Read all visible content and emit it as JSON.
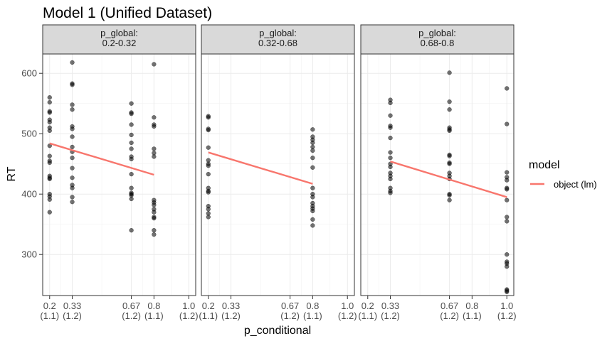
{
  "chart_data": {
    "type": "scatter",
    "title": "Model 1 (Unified Dataset)",
    "xlabel": "p_conditional",
    "ylabel": "RT",
    "xlim": [
      0.16,
      1.04
    ],
    "ylim": [
      232,
      632
    ],
    "y_ticks": [
      300,
      400,
      500,
      600
    ],
    "x_ticks": [
      {
        "value": 0.2,
        "label": [
          "0.2",
          "(1.1)"
        ]
      },
      {
        "value": 0.33,
        "label": [
          "0.33",
          "(1.2)"
        ]
      },
      {
        "value": 0.67,
        "label": [
          "0.67",
          "(1.2)"
        ]
      },
      {
        "value": 0.8,
        "label": [
          "0.8",
          "(1.1)"
        ]
      },
      {
        "value": 1.0,
        "label": [
          "1.0",
          "(1.2)"
        ]
      }
    ],
    "grid": true,
    "legend": {
      "title": "model",
      "position": "right",
      "entries": [
        {
          "name": "object (lm)",
          "color": "#F8766D"
        }
      ]
    },
    "point_color": "#000000",
    "line_color": "#F8766D",
    "panels": [
      {
        "strip": [
          "p_global:",
          "0.2-0.32"
        ],
        "fit": {
          "x": [
            0.2,
            0.8
          ],
          "y": [
            484,
            432
          ]
        },
        "points": [
          {
            "x": 0.2,
            "y": [
              560,
              552,
              537,
              535,
              523,
              519,
              510,
              505,
              480,
              463,
              455,
              452,
              430,
              427,
              425,
              400,
              396,
              391,
              370
            ]
          },
          {
            "x": 0.33,
            "y": [
              618,
              583,
              581,
              548,
              540,
              512,
              508,
              495,
              478,
              470,
              460,
              443,
              427,
              415,
              410,
              395,
              387
            ]
          },
          {
            "x": 0.67,
            "y": [
              550,
              535,
              533,
              515,
              498,
              485,
              475,
              462,
              458,
              433,
              410,
              402,
              400,
              398,
              392,
              340
            ]
          },
          {
            "x": 0.8,
            "y": [
              615,
              527,
              515,
              512,
              475,
              468,
              462,
              390,
              386,
              382,
              375,
              370,
              362,
              360,
              340,
              333
            ]
          }
        ]
      },
      {
        "strip": [
          "p_global:",
          "0.32-0.68"
        ],
        "fit": {
          "x": [
            0.2,
            0.8
          ],
          "y": [
            469,
            417
          ]
        },
        "points": [
          {
            "x": 0.2,
            "y": [
              529,
              527,
              508,
              506,
              477,
              456,
              450,
              447,
              433,
              410,
              405,
              403,
              380,
              375,
              368,
              362
            ]
          },
          {
            "x": 0.8,
            "y": [
              507,
              495,
              490,
              485,
              478,
              472,
              460,
              444,
              410,
              400,
              395,
              385,
              380,
              376,
              372,
              358,
              348
            ]
          }
        ]
      },
      {
        "strip": [
          "p_global:",
          "0.68-0.8"
        ],
        "fit": {
          "x": [
            0.33,
            1.0
          ],
          "y": [
            454,
            395
          ]
        },
        "points": [
          {
            "x": 0.33,
            "y": [
              556,
              551,
              530,
              513,
              510,
              493,
              469,
              460,
              450,
              445,
              435,
              430,
              425,
              410,
              405,
              402
            ]
          },
          {
            "x": 0.67,
            "y": [
              601,
              553,
              540,
              510,
              507,
              505,
              465,
              463,
              452,
              450,
              435,
              430,
              425,
              400,
              398,
              390
            ]
          },
          {
            "x": 1.0,
            "y": [
              575,
              516,
              436,
              428,
              423,
              410,
              408,
              390,
              362,
              355,
              300,
              288,
              285,
              280,
              242,
              240,
              238
            ]
          }
        ]
      }
    ]
  }
}
